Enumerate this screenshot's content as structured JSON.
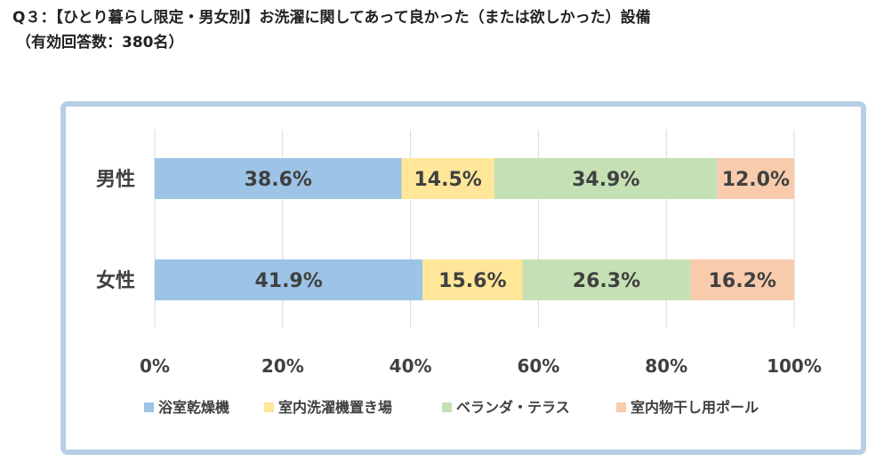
{
  "title": {
    "line1": "Q３：【ひとり暮らし限定・男女別】お洗濯に関してあって良かった（または欲しかった）設備",
    "line2": "（有効回答数：380名）"
  },
  "chart_data": {
    "type": "bar",
    "orientation": "horizontal",
    "stacked": "100%",
    "categories": [
      "男性",
      "女性"
    ],
    "series": [
      {
        "name": "浴室乾燥機",
        "values": [
          38.6,
          41.9
        ],
        "color": "#9dc3e6"
      },
      {
        "name": "室内洗濯機置き場",
        "values": [
          14.5,
          15.6
        ],
        "color": "#ffe699"
      },
      {
        "name": "ベランダ・テラス",
        "values": [
          34.9,
          26.3
        ],
        "color": "#c5e0b4"
      },
      {
        "name": "室内物干し用ポール",
        "values": [
          12.0,
          16.2
        ],
        "color": "#f8cbad"
      }
    ],
    "data_labels": [
      [
        "38.6%",
        "14.5%",
        "34.9%",
        "12.0%"
      ],
      [
        "41.9%",
        "15.6%",
        "26.3%",
        "16.2%"
      ]
    ],
    "xlim": [
      0,
      100
    ],
    "xticks": [
      "0%",
      "20%",
      "40%",
      "60%",
      "80%",
      "100%"
    ],
    "grid": true,
    "legend": "bottom"
  }
}
